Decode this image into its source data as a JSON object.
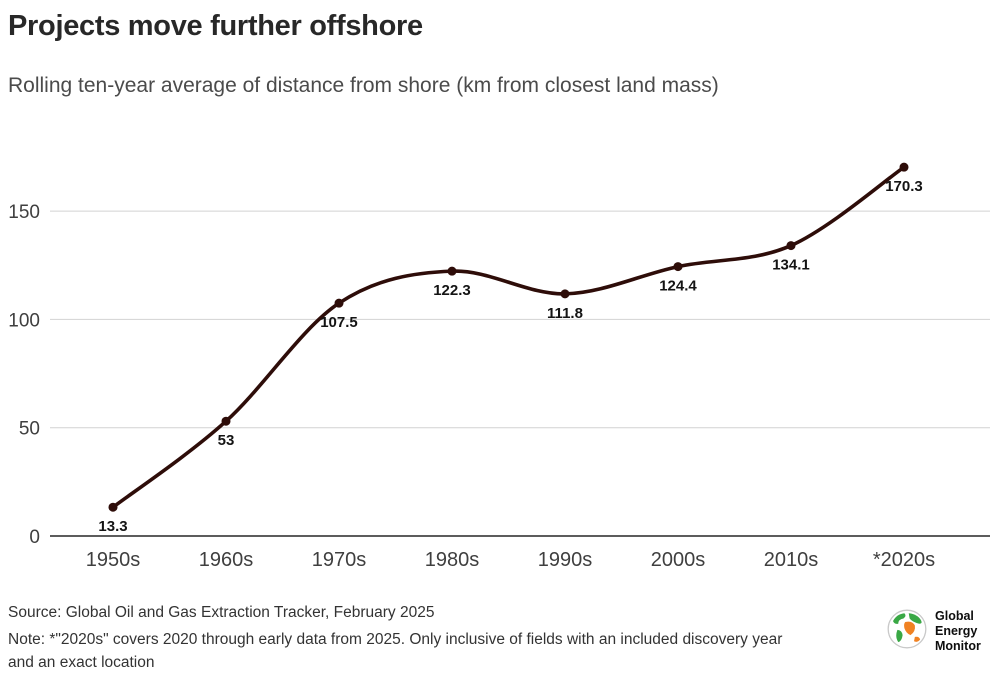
{
  "chart_data": {
    "type": "line",
    "title": "Projects move further offshore",
    "subtitle": "Rolling ten-year average of distance from shore (km from closest land mass)",
    "categories": [
      "1950s",
      "1960s",
      "1970s",
      "1980s",
      "1990s",
      "2000s",
      "2010s",
      "*2020s"
    ],
    "values": [
      13.3,
      53,
      107.5,
      122.3,
      111.8,
      124.4,
      134.1,
      170.3
    ],
    "point_labels": [
      "13.3",
      "53",
      "107.5",
      "122.3",
      "111.8",
      "124.4",
      "134.1",
      "170.3"
    ],
    "xlabel": "",
    "ylabel": "",
    "ylim": [
      0,
      175
    ],
    "yticks": [
      0,
      50,
      100,
      150
    ],
    "grid": true,
    "legend_position": "none",
    "line_color": "#2e0d09",
    "axis_color": "#262626",
    "grid_color": "#d2d2d2",
    "tick_label_color": "#3f3f3f",
    "data_label_color": "#141414"
  },
  "footer": {
    "source": "Source: Global Oil and Gas Extraction Tracker, February 2025",
    "note": "Note: *\"2020s\" covers 2020 through early data from 2025. Only inclusive of fields with an included discovery year and an exact location"
  },
  "logo": {
    "org": "Global Energy Monitor",
    "lines": [
      "Global",
      "Energy",
      "Monitor"
    ],
    "colors": {
      "green": "#39a845",
      "orange": "#f08223"
    }
  }
}
